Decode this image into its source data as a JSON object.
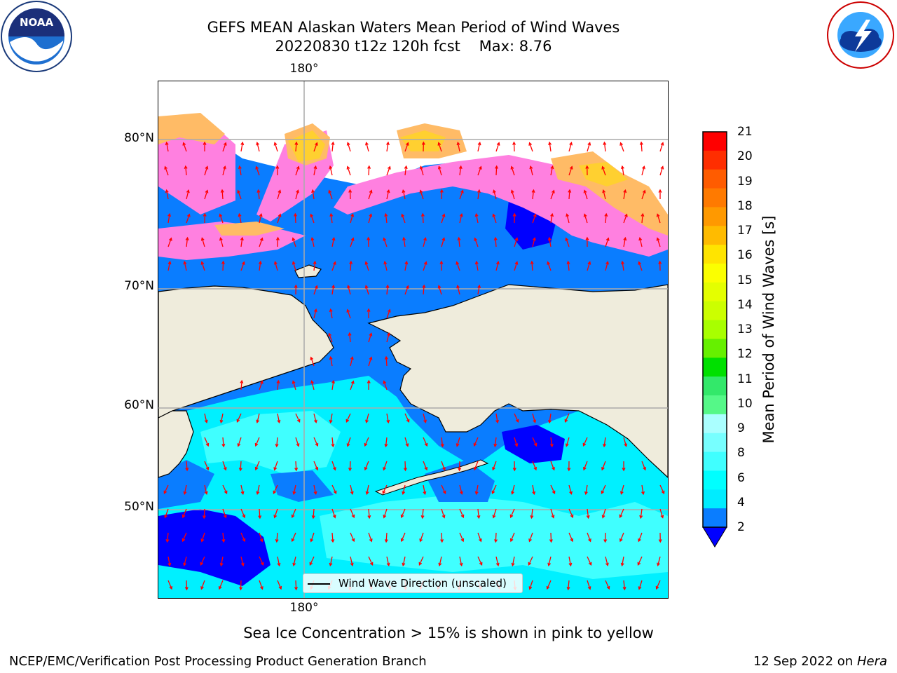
{
  "header": {
    "title_line1": "GEFS MEAN Alaskan Waters Mean Period of Wind Waves",
    "title_line2": "20220830 t12z 120h fcst    Max: 8.76"
  },
  "logos": {
    "left": "noaa-seal-icon",
    "right": "national-weather-service-icon"
  },
  "map": {
    "lat_labels": [
      "80°N",
      "70°N",
      "60°N",
      "50°N"
    ],
    "lon_label_top": "180°",
    "lon_label_bottom": "180°",
    "legend_label": "Wind Wave Direction (unscaled)",
    "colors": {
      "land": "#efecdc",
      "ocean_2_4": "#0a7dff",
      "ocean_4_6": "#00f0ff",
      "ocean_6_8": "#40ffff",
      "ocean_low": "#0000ff",
      "ice_pink": "#ff80e0",
      "ice_orange": "#ffbb66",
      "ice_yellow": "#ffd030",
      "arrow": "#ff0000",
      "grid": "#aaaaaa"
    }
  },
  "colorbar": {
    "label": "Mean Period of Wind Waves [s]",
    "ticks": [
      "21",
      "20",
      "19",
      "18",
      "17",
      "16",
      "15",
      "14",
      "13",
      "12",
      "11",
      "10",
      "9",
      "8",
      "6",
      "4",
      "2"
    ],
    "colors_top_to_bottom": [
      "#ff0000",
      "#ff2e00",
      "#ff5c00",
      "#ff7a00",
      "#ff9900",
      "#ffbb00",
      "#ffe400",
      "#fbff00",
      "#e4ff00",
      "#ccff00",
      "#a8ff00",
      "#66f000",
      "#00e000",
      "#33e86a",
      "#55f888",
      "#aaffff",
      "#77ffff",
      "#40ffff",
      "#00ffff",
      "#00ecff",
      "#0a7dff"
    ],
    "extend_color": "#0000ff"
  },
  "footer": {
    "note": "Sea Ice Concentration > 15% is shown in pink to yellow",
    "credit_left": "NCEP/EMC/Verification Post Processing Product Generation Branch",
    "credit_date": "12 Sep 2022 on",
    "credit_machine": "Hera"
  }
}
